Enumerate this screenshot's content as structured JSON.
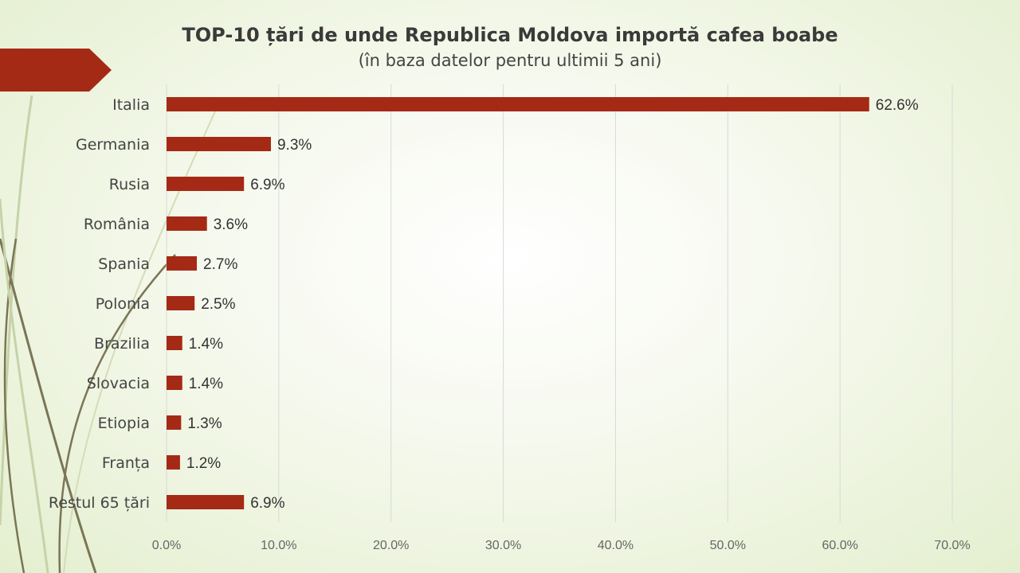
{
  "title": "TOP-10 țări de unde Republica Moldova importă cafea boabe",
  "subtitle": "(în baza datelor pentru ultimii 5 ani)",
  "colors": {
    "bar": "#a52a16",
    "grid": "#d9d9d9",
    "accent_arrow": "#a52a16"
  },
  "chart_data": {
    "type": "bar",
    "orientation": "horizontal",
    "title": "TOP-10 țări de unde Republica Moldova importă cafea boabe",
    "subtitle": "(în baza datelor pentru ultimii 5 ani)",
    "categories": [
      "Italia",
      "Germania",
      "Rusia",
      "România",
      "Spania",
      "Polonia",
      "Brazilia",
      "Slovacia",
      "Etiopia",
      "Franța",
      "Restul 65 țări"
    ],
    "values": [
      62.6,
      9.3,
      6.9,
      3.6,
      2.7,
      2.5,
      1.4,
      1.4,
      1.3,
      1.2,
      6.9
    ],
    "value_labels": [
      "62.6%",
      "9.3%",
      "6.9%",
      "3.6%",
      "2.7%",
      "2.5%",
      "1.4%",
      "1.4%",
      "1.3%",
      "1.2%",
      "6.9%"
    ],
    "xlim": [
      0,
      70
    ],
    "xticks": [
      "0.0%",
      "10.0%",
      "20.0%",
      "30.0%",
      "40.0%",
      "50.0%",
      "60.0%",
      "70.0%"
    ],
    "grid": "vertical",
    "legend": "none"
  }
}
